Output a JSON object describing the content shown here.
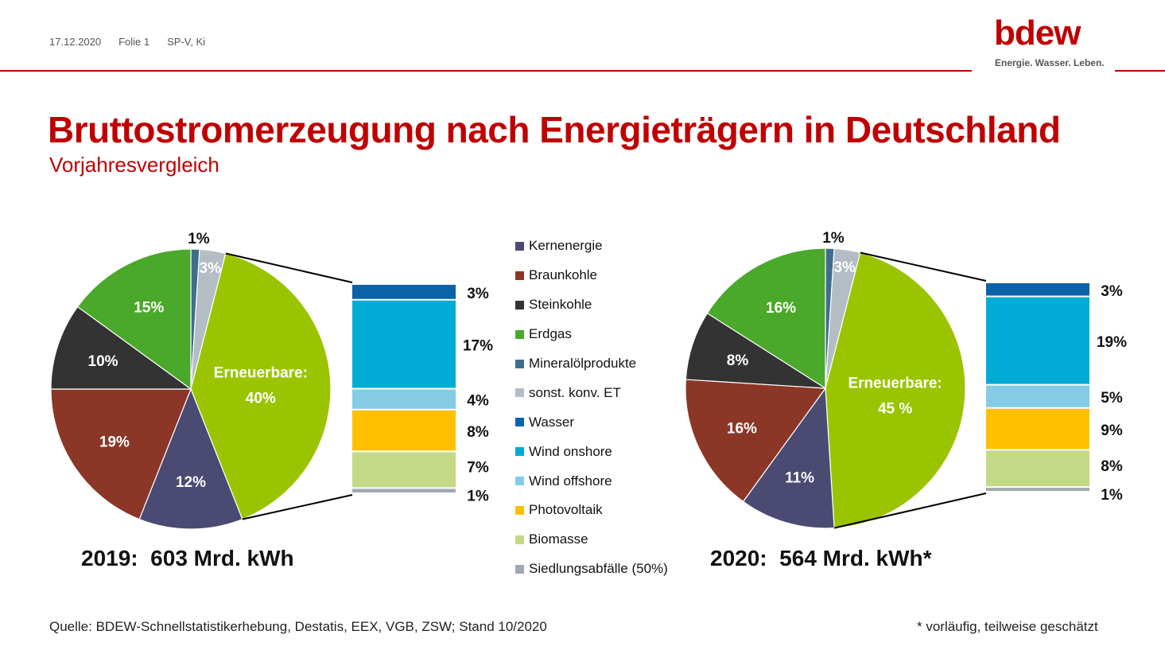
{
  "header": {
    "date": "17.12.2020",
    "slide": "Folie 1",
    "author": "SP-V, Ki",
    "logo_word": "bdew",
    "logo_tagline": "Energie. Wasser. Leben."
  },
  "title": "Bruttostromerzeugung nach Energieträgern in Deutschland",
  "subtitle": "Vorjahresvergleich",
  "colors": {
    "brand_red": "#c00000",
    "Kernenergie": "#4a4a72",
    "Braunkohle": "#8b3627",
    "Steinkohle": "#333333",
    "Erdgas": "#4aa82a",
    "Mineralölprodukte": "#3f6d8c",
    "sonst. konv. ET": "#b4bcc4",
    "Erneuerbare": "#9bc400",
    "Wasser": "#0a62a8",
    "Wind onshore": "#00acd6",
    "Wind offshore": "#84cce6",
    "Photovoltaik": "#ffc000",
    "Biomasse": "#c3d986",
    "Siedlungsabfälle (50%)": "#a0a8b2"
  },
  "legend": [
    "Kernenergie",
    "Braunkohle",
    "Steinkohle",
    "Erdgas",
    "Mineralölprodukte",
    "sonst. konv. ET",
    "Wasser",
    "Wind onshore",
    "Wind offshore",
    "Photovoltaik",
    "Biomasse",
    "Siedlungsabfälle (50%)"
  ],
  "chart_data": [
    {
      "type": "pie",
      "year": "2019",
      "total_label": "2019:  603 Mrd. kWh",
      "slices": [
        {
          "name": "Mineralölprodukte",
          "value": 1,
          "label": "1%"
        },
        {
          "name": "sonst. konv. ET",
          "value": 3,
          "label": "3%"
        },
        {
          "name": "Erneuerbare",
          "value": 40,
          "label": "Erneuerbare:|40%"
        },
        {
          "name": "Kernenergie",
          "value": 12,
          "label": "12%"
        },
        {
          "name": "Braunkohle",
          "value": 19,
          "label": "19%"
        },
        {
          "name": "Steinkohle",
          "value": 10,
          "label": "10%"
        },
        {
          "name": "Erdgas",
          "value": 15,
          "label": "15%"
        }
      ],
      "renewables_breakdown": [
        {
          "name": "Wasser",
          "value": 3,
          "label": "3%"
        },
        {
          "name": "Wind onshore",
          "value": 17,
          "label": "17%"
        },
        {
          "name": "Wind offshore",
          "value": 4,
          "label": "4%"
        },
        {
          "name": "Photovoltaik",
          "value": 8,
          "label": "8%"
        },
        {
          "name": "Biomasse",
          "value": 7,
          "label": "7%"
        },
        {
          "name": "Siedlungsabfälle (50%)",
          "value": 1,
          "label": "1%"
        }
      ]
    },
    {
      "type": "pie",
      "year": "2020",
      "total_label": "2020:  564 Mrd. kWh*",
      "slices": [
        {
          "name": "Mineralölprodukte",
          "value": 1,
          "label": "1%"
        },
        {
          "name": "sonst. konv. ET",
          "value": 3,
          "label": "3%"
        },
        {
          "name": "Erneuerbare",
          "value": 45,
          "label": "Erneuerbare:|45 %"
        },
        {
          "name": "Kernenergie",
          "value": 11,
          "label": "11%"
        },
        {
          "name": "Braunkohle",
          "value": 16,
          "label": "16%"
        },
        {
          "name": "Steinkohle",
          "value": 8,
          "label": "8%"
        },
        {
          "name": "Erdgas",
          "value": 16,
          "label": "16%"
        }
      ],
      "renewables_breakdown": [
        {
          "name": "Wasser",
          "value": 3,
          "label": "3%"
        },
        {
          "name": "Wind onshore",
          "value": 19,
          "label": "19%"
        },
        {
          "name": "Wind offshore",
          "value": 5,
          "label": "5%"
        },
        {
          "name": "Photovoltaik",
          "value": 9,
          "label": "9%"
        },
        {
          "name": "Biomasse",
          "value": 8,
          "label": "8%"
        },
        {
          "name": "Siedlungsabfälle (50%)",
          "value": 1,
          "label": "1%"
        }
      ]
    }
  ],
  "source": "Quelle: BDEW-Schnellstatistikerhebung, Destatis, EEX, VGB, ZSW; Stand 10/2020",
  "footnote": "* vorläufig, teilweise geschätzt"
}
